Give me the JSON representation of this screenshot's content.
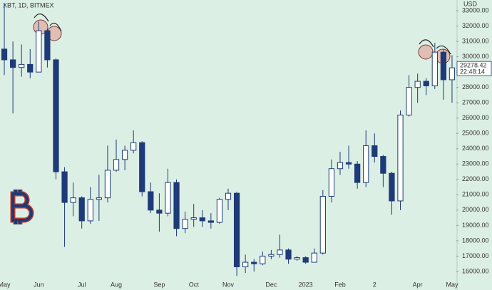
{
  "chart_data": {
    "type": "candlestick",
    "title": "XBT, 1D, BITMEX",
    "y_axis_label": "USD",
    "categories": [
      "May",
      null,
      null,
      null,
      "Jun",
      null,
      null,
      null,
      null,
      "Jul",
      null,
      null,
      null,
      "Aug",
      null,
      null,
      null,
      null,
      "Sep",
      null,
      null,
      null,
      "Oct",
      null,
      null,
      null,
      "Nov",
      null,
      null,
      null,
      null,
      "Dec",
      null,
      null,
      null,
      "2023",
      null,
      null,
      null,
      "Feb",
      null,
      null,
      null,
      "2",
      null,
      null,
      null,
      null,
      "Apr",
      null,
      null,
      null,
      "May"
    ],
    "open": [
      30500,
      29800,
      29300,
      29500,
      29000,
      31700,
      29800,
      22500,
      20500,
      20800,
      19300,
      20700,
      20800,
      22600,
      23300,
      23900,
      24400,
      21200,
      20000,
      19800,
      21800,
      18800,
      19400,
      19500,
      19300,
      19200,
      20700,
      21100,
      16300,
      16600,
      16500,
      17000,
      17100,
      17400,
      16800,
      16900,
      16600,
      17200,
      20900,
      22700,
      23100,
      23000,
      21800,
      24200,
      23500,
      22400,
      20600,
      26200,
      28000,
      28400,
      28100,
      30300,
      28500
    ],
    "high": [
      33500,
      31000,
      30800,
      30500,
      32300,
      31800,
      29900,
      22800,
      21800,
      20900,
      21500,
      22300,
      24200,
      24600,
      24200,
      25200,
      24500,
      21800,
      21100,
      22700,
      22000,
      19900,
      20400,
      20000,
      19800,
      20800,
      21400,
      21200,
      17100,
      16800,
      17300,
      17400,
      18400,
      17500,
      17000,
      17000,
      17500,
      21300,
      23300,
      23800,
      24200,
      23200,
      25200,
      25000,
      23600,
      22500,
      26500,
      28800,
      28900,
      28600,
      30900,
      30500,
      30100
    ],
    "low": [
      28800,
      26300,
      28700,
      28600,
      29000,
      29300,
      22000,
      17600,
      19600,
      18800,
      19100,
      19300,
      20500,
      22500,
      22600,
      23700,
      20900,
      19800,
      18600,
      19600,
      18300,
      18500,
      18900,
      18900,
      18800,
      19100,
      20000,
      15700,
      15900,
      16000,
      16400,
      16800,
      16900,
      16500,
      16700,
      16500,
      16600,
      17100,
      20500,
      22300,
      22700,
      21400,
      21500,
      23100,
      21500,
      19700,
      20000,
      26100,
      27000,
      27500,
      27900,
      27200,
      27000
    ],
    "close": [
      29800,
      29300,
      29500,
      29000,
      31700,
      29800,
      22500,
      20500,
      20800,
      19300,
      20700,
      20800,
      22600,
      23300,
      23900,
      24400,
      21200,
      20000,
      19800,
      21800,
      18800,
      19400,
      19500,
      19300,
      19200,
      20700,
      21100,
      16300,
      16600,
      16500,
      17000,
      17100,
      17400,
      16800,
      16900,
      16600,
      17200,
      20900,
      22700,
      23100,
      23000,
      21800,
      24200,
      23500,
      22400,
      20600,
      26200,
      28000,
      28400,
      28100,
      30300,
      28500,
      29278.42
    ],
    "up_color": "#ffffff",
    "down_color": "#1e3a78",
    "edge_color": "#1e3a78",
    "ylim": [
      14790,
      33700
    ],
    "yticks": [
      {
        "value": 16000,
        "label": "16000.00"
      },
      {
        "value": 17000,
        "label": "17000.00"
      },
      {
        "value": 18000,
        "label": "18000.00"
      },
      {
        "value": 19000,
        "label": "19000.00"
      },
      {
        "value": 20000,
        "label": "20000.00"
      },
      {
        "value": 21000,
        "label": "21000.00"
      },
      {
        "value": 22000,
        "label": "22000.00"
      },
      {
        "value": 23000,
        "label": "23000.00"
      },
      {
        "value": 24000,
        "label": "24000.00"
      },
      {
        "value": 25000,
        "label": "25000.00"
      },
      {
        "value": 26000,
        "label": "26000.00"
      },
      {
        "value": 27000,
        "label": "27000.00"
      },
      {
        "value": 28000,
        "label": "28000.00"
      },
      {
        "value": 29000,
        "label": "29000.00"
      },
      {
        "value": 30000,
        "label": "30000.00"
      },
      {
        "value": 31000,
        "label": "31000.00"
      },
      {
        "value": 32000,
        "label": "32000.00"
      },
      {
        "value": 33000,
        "label": "33000.00"
      }
    ],
    "countdown": "22:48:14",
    "grid": false
  }
}
